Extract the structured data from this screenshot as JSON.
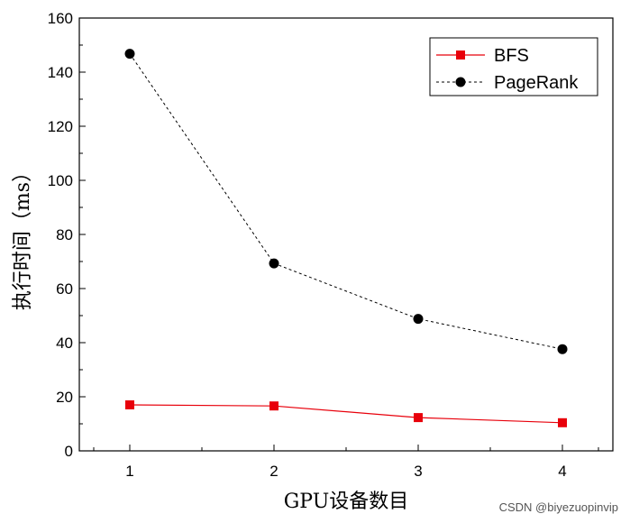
{
  "chart_data": {
    "type": "line",
    "x": [
      1,
      2,
      3,
      4
    ],
    "xlim": [
      0.65,
      4.35
    ],
    "ylim": [
      0,
      160
    ],
    "xticks": [
      1,
      2,
      3,
      4
    ],
    "yticks": [
      0,
      20,
      40,
      60,
      80,
      100,
      120,
      140,
      160
    ],
    "xlabel": "GPU设备数目",
    "ylabel": "执行时间（ms）",
    "grid": false,
    "legend_position": "top-right",
    "series": [
      {
        "name": "BFS",
        "values": [
          17.0,
          16.6,
          12.3,
          10.4
        ],
        "color": "#e8000b",
        "marker": "square",
        "line": "solid"
      },
      {
        "name": "PageRank",
        "values": [
          146.8,
          69.3,
          48.8,
          37.6
        ],
        "color": "#000000",
        "marker": "circle",
        "line": "dashed"
      }
    ]
  },
  "watermark": "CSDN @biyezuopinvip"
}
